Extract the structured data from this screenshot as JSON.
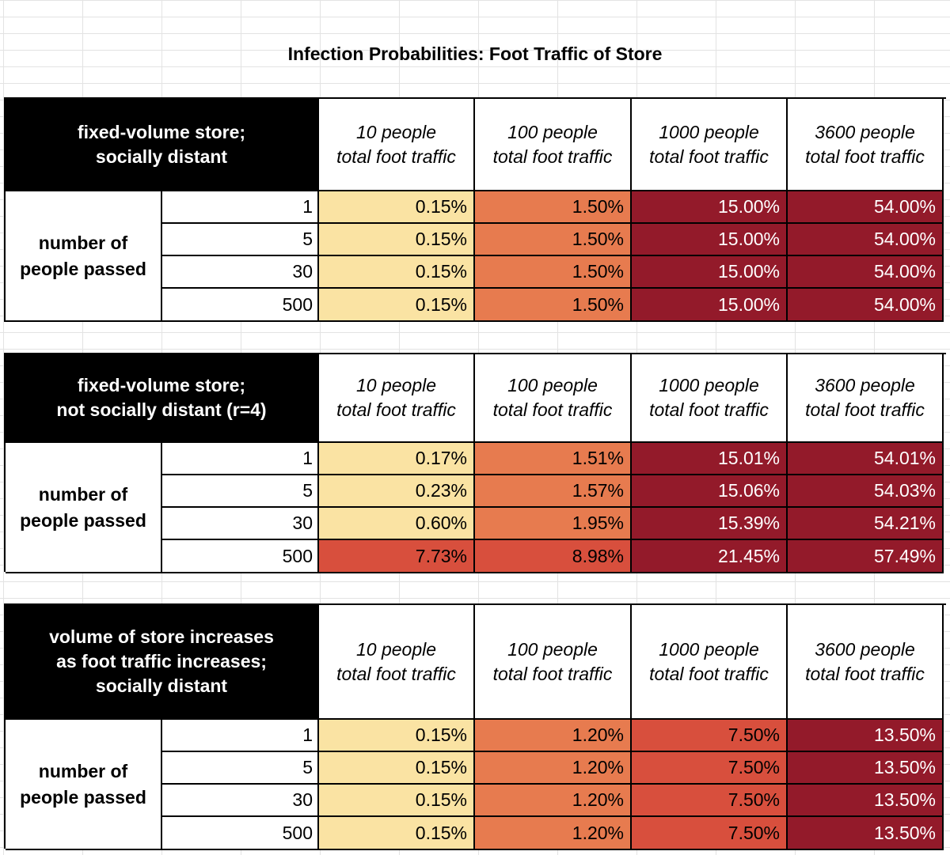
{
  "title": "Infection Probabilities: Foot Traffic of Store",
  "tables": [
    {
      "header_lines": [
        "fixed-volume store;",
        "socially distant"
      ],
      "columns": [
        [
          "10 people",
          "total foot traffic"
        ],
        [
          "100 people",
          "total foot traffic"
        ],
        [
          "1000 people",
          "total foot traffic"
        ],
        [
          "3600 people",
          "total foot traffic"
        ]
      ],
      "row_label_lines": [
        "number of",
        "people passed"
      ],
      "rows": [
        {
          "n": "1",
          "values": [
            "0.15%",
            "1.50%",
            "15.00%",
            "54.00%"
          ]
        },
        {
          "n": "5",
          "values": [
            "0.15%",
            "1.50%",
            "15.00%",
            "54.00%"
          ]
        },
        {
          "n": "30",
          "values": [
            "0.15%",
            "1.50%",
            "15.00%",
            "54.00%"
          ]
        },
        {
          "n": "500",
          "values": [
            "0.15%",
            "1.50%",
            "15.00%",
            "54.00%"
          ]
        }
      ]
    },
    {
      "header_lines": [
        "fixed-volume store;",
        "not socially distant (r=4)"
      ],
      "columns": [
        [
          "10 people",
          "total foot traffic"
        ],
        [
          "100 people",
          "total foot traffic"
        ],
        [
          "1000 people",
          "total foot traffic"
        ],
        [
          "3600 people",
          "total foot traffic"
        ]
      ],
      "row_label_lines": [
        "number of",
        "people passed"
      ],
      "rows": [
        {
          "n": "1",
          "values": [
            "0.17%",
            "1.51%",
            "15.01%",
            "54.01%"
          ]
        },
        {
          "n": "5",
          "values": [
            "0.23%",
            "1.57%",
            "15.06%",
            "54.03%"
          ]
        },
        {
          "n": "30",
          "values": [
            "0.60%",
            "1.95%",
            "15.39%",
            "54.21%"
          ]
        },
        {
          "n": "500",
          "values": [
            "7.73%",
            "8.98%",
            "21.45%",
            "57.49%"
          ]
        }
      ]
    },
    {
      "header_lines": [
        "volume of store increases",
        "as foot traffic increases;",
        "socially distant"
      ],
      "columns": [
        [
          "10 people",
          "total foot traffic"
        ],
        [
          "100 people",
          "total foot traffic"
        ],
        [
          "1000 people",
          "total foot traffic"
        ],
        [
          "3600 people",
          "total foot traffic"
        ]
      ],
      "row_label_lines": [
        "number of",
        "people passed"
      ],
      "rows": [
        {
          "n": "1",
          "values": [
            "0.15%",
            "1.20%",
            "7.50%",
            "13.50%"
          ]
        },
        {
          "n": "5",
          "values": [
            "0.15%",
            "1.20%",
            "7.50%",
            "13.50%"
          ]
        },
        {
          "n": "30",
          "values": [
            "0.15%",
            "1.20%",
            "7.50%",
            "13.50%"
          ]
        },
        {
          "n": "500",
          "values": [
            "0.15%",
            "1.20%",
            "7.50%",
            "13.50%"
          ]
        }
      ]
    }
  ],
  "heat_colors": {
    "lowest": "#fae3a3",
    "low": "#e77b4f",
    "mid": "#d84f3d",
    "high": "#931a2a"
  }
}
